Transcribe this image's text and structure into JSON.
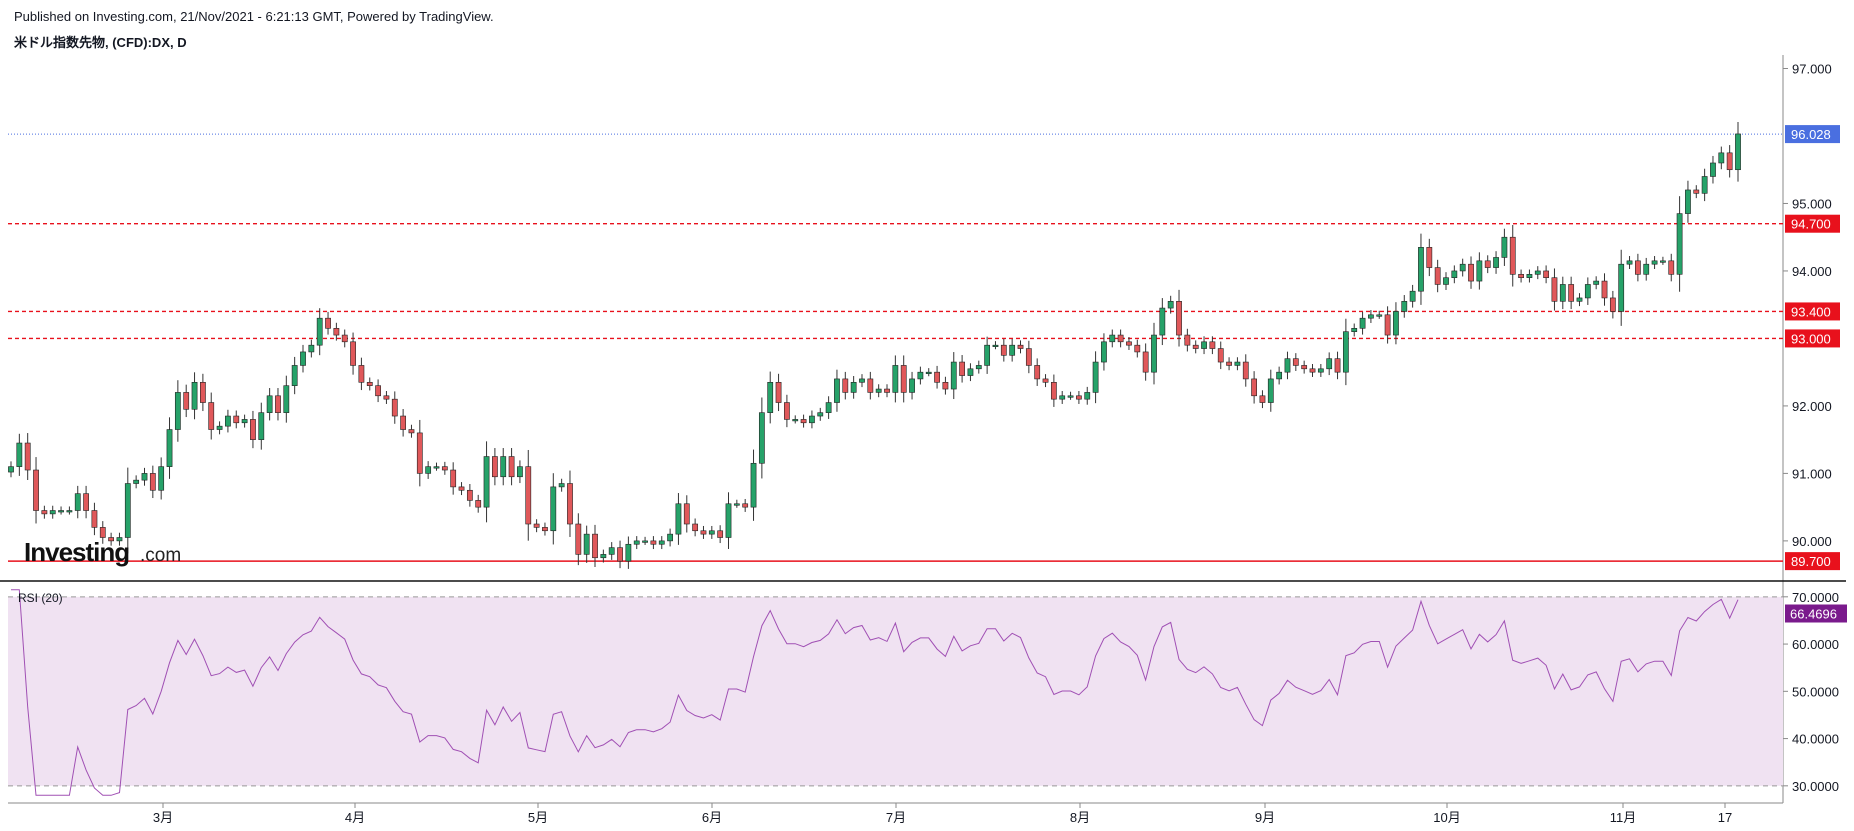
{
  "header": {
    "published": "Published on Investing.com, 21/Nov/2021 - 6:21:13 GMT, Powered by TradingView.",
    "symbol": "米ドル指数先物, (CFD):DX, D"
  },
  "logo": {
    "main": "Investing",
    "sub": ".com"
  },
  "colors": {
    "up": "#26a269",
    "down": "#e0585a",
    "wick": "#333333",
    "level": "#e8111c",
    "last_price": "#4a6fe0",
    "rsi_line": "#a050b4",
    "rsi_fill": "#f0e2f2",
    "rsi_tag": "#7a1a8c"
  },
  "chart_data": [
    {
      "type": "candlestick",
      "title": "米ドル指数先物, (CFD):DX, D",
      "x_month_labels": [
        "3月",
        "4月",
        "5月",
        "6月",
        "7月",
        "8月",
        "9月",
        "10月",
        "11月",
        "17"
      ],
      "y_ticks": [
        "97.000",
        "95.000",
        "94.000",
        "92.000",
        "91.000",
        "90.000"
      ],
      "y_tick_values": [
        97,
        95,
        94,
        92,
        91,
        90
      ],
      "ylim": [
        89.45,
        97.2
      ],
      "last_price": 96.028,
      "last_price_label": "96.028",
      "horizontal_levels": [
        {
          "value": 94.7,
          "label": "94.700",
          "style": "dashed"
        },
        {
          "value": 93.4,
          "label": "93.400",
          "style": "dashed"
        },
        {
          "value": 93.0,
          "label": "93.000",
          "style": "dashed"
        },
        {
          "value": 89.7,
          "label": "89.700",
          "style": "solid"
        }
      ],
      "closes": [
        91.1,
        91.45,
        91.05,
        90.45,
        90.4,
        90.45,
        90.45,
        90.45,
        90.7,
        90.45,
        90.2,
        90.05,
        90.0,
        90.05,
        90.85,
        90.9,
        91.0,
        90.75,
        91.1,
        91.65,
        92.2,
        91.95,
        92.35,
        92.05,
        91.65,
        91.7,
        91.85,
        91.75,
        91.8,
        91.5,
        91.9,
        92.15,
        91.9,
        92.3,
        92.6,
        92.8,
        92.9,
        93.3,
        93.15,
        93.05,
        92.95,
        92.6,
        92.35,
        92.3,
        92.15,
        92.1,
        91.85,
        91.65,
        91.6,
        91.0,
        91.1,
        91.1,
        91.05,
        90.8,
        90.75,
        90.6,
        90.5,
        91.25,
        90.95,
        91.25,
        90.95,
        91.1,
        90.25,
        90.2,
        90.15,
        90.8,
        90.85,
        90.25,
        89.8,
        90.1,
        89.75,
        89.8,
        89.9,
        89.7,
        89.95,
        90.0,
        90.0,
        89.95,
        90.0,
        90.1,
        90.55,
        90.25,
        90.15,
        90.1,
        90.15,
        90.05,
        90.55,
        90.55,
        90.5,
        91.15,
        91.9,
        92.35,
        92.05,
        91.8,
        91.8,
        91.75,
        91.85,
        91.9,
        92.05,
        92.4,
        92.2,
        92.35,
        92.4,
        92.2,
        92.25,
        92.2,
        92.6,
        92.2,
        92.4,
        92.5,
        92.5,
        92.35,
        92.25,
        92.65,
        92.45,
        92.55,
        92.6,
        92.9,
        92.9,
        92.75,
        92.9,
        92.85,
        92.6,
        92.4,
        92.35,
        92.1,
        92.15,
        92.15,
        92.1,
        92.2,
        92.65,
        92.95,
        93.05,
        92.95,
        92.9,
        92.8,
        92.5,
        93.05,
        93.45,
        93.55,
        93.05,
        92.9,
        92.85,
        92.95,
        92.85,
        92.65,
        92.6,
        92.65,
        92.4,
        92.15,
        92.05,
        92.4,
        92.5,
        92.7,
        92.6,
        92.55,
        92.5,
        92.55,
        92.7,
        92.5,
        93.1,
        93.15,
        93.3,
        93.35,
        93.35,
        93.05,
        93.4,
        93.55,
        93.7,
        94.35,
        94.05,
        93.8,
        93.9,
        94.0,
        94.1,
        93.85,
        94.15,
        94.05,
        94.2,
        94.5,
        93.95,
        93.9,
        93.95,
        94.0,
        93.9,
        93.55,
        93.8,
        93.55,
        93.6,
        93.8,
        93.85,
        93.6,
        93.4,
        94.1,
        94.15,
        93.95,
        94.1,
        94.15,
        94.15,
        93.95,
        94.85,
        95.2,
        95.15,
        95.4,
        95.6,
        95.75,
        95.5,
        96.03
      ],
      "rsi": {
        "label": "RSI (20)",
        "y_ticks": [
          "70.0000",
          "60.0000",
          "50.0000",
          "40.0000",
          "30.0000"
        ],
        "y_tick_values": [
          70,
          60,
          50,
          40,
          30
        ],
        "band": [
          30,
          70
        ],
        "ylim": [
          27.0,
          72.5
        ],
        "last_value": 66.4696,
        "last_label": "66.4696"
      }
    }
  ]
}
